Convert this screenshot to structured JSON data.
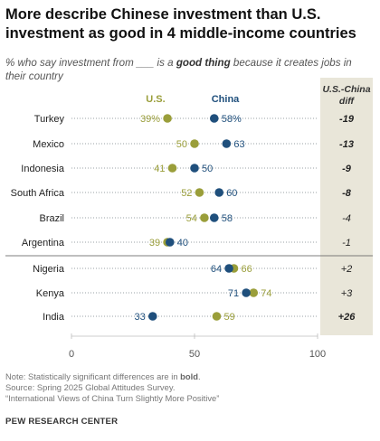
{
  "title": "More describe Chinese investment than U.S. investment as good in 4 middle-income countries",
  "subtitle": {
    "pre": "% who say investment from ___ is a ",
    "bold": "good thing",
    "post": " because it creates jobs in their country"
  },
  "chart_data": {
    "type": "dot",
    "legend": [
      {
        "name": "U.S.",
        "color": "#9a9e3a"
      },
      {
        "name": "China",
        "color": "#1f4f7c"
      }
    ],
    "diff_header": "U.S.-China diff",
    "colors": {
      "us": "#9a9e3a",
      "china": "#1f4f7c",
      "diff_bg": "#e9e6d9",
      "dots_line": "#9aa0a6"
    },
    "xlim": [
      0,
      100
    ],
    "xticks": [
      0,
      50,
      100
    ],
    "rows": [
      {
        "country": "Turkey",
        "us": 39,
        "china": 58,
        "us_label": "39%",
        "china_label": "58%",
        "diff": "-19",
        "bold": true
      },
      {
        "country": "Mexico",
        "us": 50,
        "china": 63,
        "us_label": "50",
        "china_label": "63",
        "diff": "-13",
        "bold": true
      },
      {
        "country": "Indonesia",
        "us": 41,
        "china": 50,
        "us_label": "41",
        "china_label": "50",
        "diff": "-9",
        "bold": true
      },
      {
        "country": "South Africa",
        "us": 52,
        "china": 60,
        "us_label": "52",
        "china_label": "60",
        "diff": "-8",
        "bold": true
      },
      {
        "country": "Brazil",
        "us": 54,
        "china": 58,
        "us_label": "54",
        "china_label": "58",
        "diff": "-4",
        "bold": false
      },
      {
        "country": "Argentina",
        "us": 39,
        "china": 40,
        "us_label": "39",
        "china_label": "40",
        "diff": "-1",
        "bold": false
      },
      {
        "country": "Nigeria",
        "us": 66,
        "china": 64,
        "us_label": "66",
        "china_label": "64",
        "diff": "+2",
        "bold": false
      },
      {
        "country": "Kenya",
        "us": 74,
        "china": 71,
        "us_label": "74",
        "china_label": "71",
        "diff": "+3",
        "bold": false
      },
      {
        "country": "India",
        "us": 59,
        "china": 33,
        "us_label": "59",
        "china_label": "33",
        "diff": "+26",
        "bold": true
      }
    ]
  },
  "note": {
    "line1_pre": "Note: Statistically significant differences are in ",
    "line1_bold": "bold",
    "line1_post": ".",
    "line2": "Source: Spring 2025 Global Attitudes Survey.",
    "line3": "“International Views of China Turn Slightly More Positive”"
  },
  "org": "PEW RESEARCH CENTER"
}
